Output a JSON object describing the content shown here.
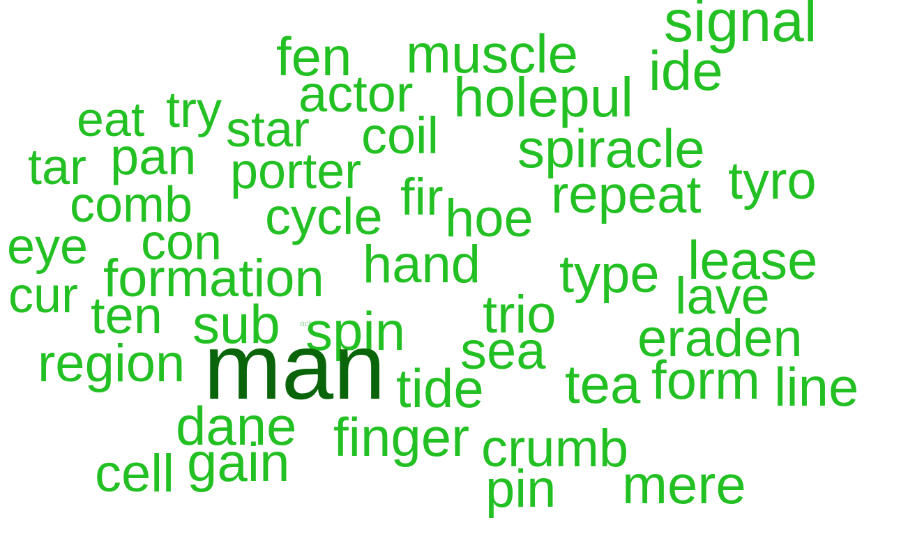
{
  "colors": {
    "primary": "#22c022",
    "highlight": "#0a640a",
    "faint": "#9ad89a",
    "background": "#ffffff"
  },
  "words": [
    {
      "text": "signal"
    },
    {
      "text": "muscle"
    },
    {
      "text": "fen"
    },
    {
      "text": "ide"
    },
    {
      "text": "actor"
    },
    {
      "text": "holepul"
    },
    {
      "text": "eat"
    },
    {
      "text": "try"
    },
    {
      "text": "star"
    },
    {
      "text": "coil"
    },
    {
      "text": "spiracle"
    },
    {
      "text": "tar"
    },
    {
      "text": "pan"
    },
    {
      "text": "porter"
    },
    {
      "text": "tyro"
    },
    {
      "text": "fir"
    },
    {
      "text": "repeat"
    },
    {
      "text": "comb"
    },
    {
      "text": "cycle"
    },
    {
      "text": "hoe"
    },
    {
      "text": "eye"
    },
    {
      "text": "con"
    },
    {
      "text": "hand"
    },
    {
      "text": "lease"
    },
    {
      "text": "formation"
    },
    {
      "text": "type"
    },
    {
      "text": "cur"
    },
    {
      "text": "lave"
    },
    {
      "text": "ten"
    },
    {
      "text": "act"
    },
    {
      "text": "trio"
    },
    {
      "text": "sub"
    },
    {
      "text": "spin"
    },
    {
      "text": "eraden"
    },
    {
      "text": "sea"
    },
    {
      "text": "region"
    },
    {
      "text": "man"
    },
    {
      "text": "tide"
    },
    {
      "text": "tea"
    },
    {
      "text": "form"
    },
    {
      "text": "line"
    },
    {
      "text": "dane"
    },
    {
      "text": "finger"
    },
    {
      "text": "crumb"
    },
    {
      "text": "gain"
    },
    {
      "text": "cell"
    },
    {
      "text": "mere"
    },
    {
      "text": "pin"
    }
  ]
}
